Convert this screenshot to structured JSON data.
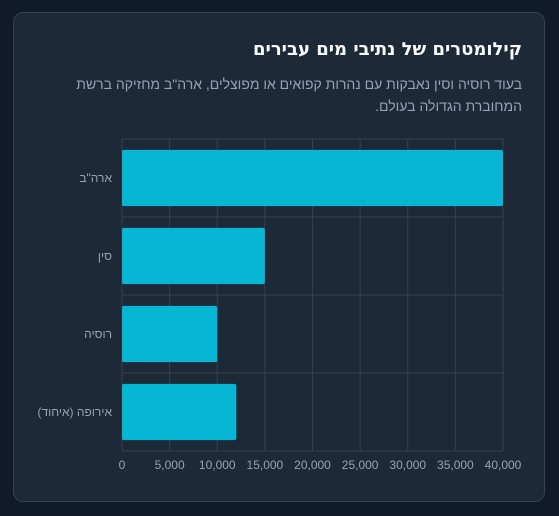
{
  "card": {
    "title": "קילומטרים של נתיבי מים עבירים",
    "subtitle": "בעוד רוסיה וסין נאבקות עם נהרות קפואים או מפוצלים, ארה\"ב מחזיקה ברשת המחוברת הגדולה בעולם."
  },
  "chart_data": {
    "type": "bar",
    "orientation": "horizontal",
    "categories": [
      "ארה\"ב",
      "סין",
      "רוסיה",
      "אירופה (איחוד)"
    ],
    "values": [
      40000,
      15000,
      10000,
      12000
    ],
    "xlim": [
      0,
      40000
    ],
    "xticks": [
      0,
      5000,
      10000,
      15000,
      20000,
      25000,
      30000,
      35000,
      40000
    ],
    "grid": true,
    "bar_color": "#06b6d4",
    "grid_color": "#334155"
  }
}
